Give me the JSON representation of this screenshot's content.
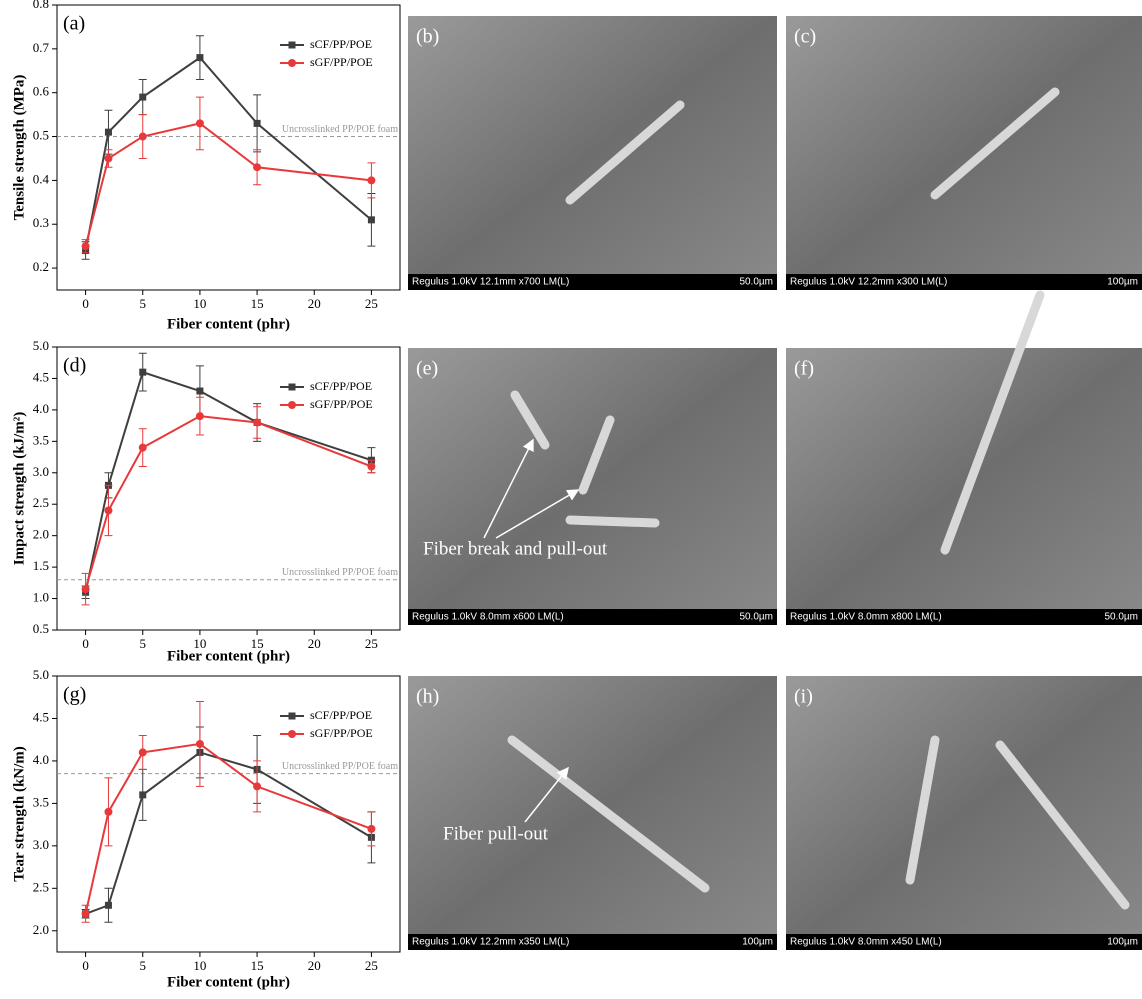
{
  "chart_data": [
    {
      "type": "line",
      "panel": "(a)",
      "xlabel": "Fiber content (phr)",
      "ylabel": "Tensile strength (MPa)",
      "x": [
        0,
        2,
        5,
        10,
        15,
        25
      ],
      "xlim": [
        -2.5,
        27.5
      ],
      "xticks": [
        0,
        5,
        10,
        15,
        20,
        25
      ],
      "ylim": [
        0.15,
        0.8
      ],
      "yticks": [
        0.2,
        0.3,
        0.4,
        0.5,
        0.6,
        0.7,
        0.8
      ],
      "reference": {
        "value": 0.5,
        "label": "Uncrosslinked PP/POE foam"
      },
      "legend": "upper right",
      "series": [
        {
          "name": "sCF/PP/POE",
          "color": "#3f3f3f",
          "marker": "square",
          "values": [
            0.24,
            0.51,
            0.59,
            0.68,
            0.53,
            0.31
          ],
          "errors": [
            0.02,
            0.05,
            0.04,
            0.05,
            0.065,
            0.06
          ]
        },
        {
          "name": "sGF/PP/POE",
          "color": "#e8393a",
          "marker": "circle",
          "values": [
            0.25,
            0.45,
            0.5,
            0.53,
            0.43,
            0.4
          ],
          "errors": [
            0.015,
            0.02,
            0.05,
            0.06,
            0.04,
            0.04
          ]
        }
      ]
    },
    {
      "type": "line",
      "panel": "(d)",
      "xlabel": "Fiber content (phr)",
      "ylabel": "Impact strength (kJ/m²)",
      "x": [
        0,
        2,
        5,
        10,
        15,
        25
      ],
      "xlim": [
        -2.5,
        27.5
      ],
      "xticks": [
        0,
        5,
        10,
        15,
        20,
        25
      ],
      "ylim": [
        0.5,
        5.0
      ],
      "yticks": [
        0.5,
        {
          "value": 1,
          "label": "1.0"
        },
        1.5,
        {
          "value": 2,
          "label": "2.0"
        },
        2.5,
        {
          "value": 3,
          "label": "3.0"
        },
        3.5,
        {
          "value": 4,
          "label": "4.0"
        },
        4.5,
        {
          "value": 5,
          "label": "5.0"
        }
      ],
      "reference": {
        "value": 1.3,
        "label": "Uncrosslinked PP/POE foam"
      },
      "legend": "upper right",
      "series": [
        {
          "name": "sCF/PP/POE",
          "color": "#3f3f3f",
          "marker": "square",
          "values": [
            1.1,
            2.8,
            4.6,
            4.3,
            3.8,
            3.2
          ],
          "errors": [
            0.1,
            0.2,
            0.3,
            0.4,
            0.3,
            0.2
          ]
        },
        {
          "name": "sGF/PP/POE",
          "color": "#e8393a",
          "marker": "circle",
          "values": [
            1.15,
            2.4,
            3.4,
            3.9,
            3.8,
            3.1
          ],
          "errors": [
            0.25,
            0.4,
            0.3,
            0.3,
            0.25,
            0.1
          ]
        }
      ]
    },
    {
      "type": "line",
      "panel": "(g)",
      "xlabel": "Fiber content (phr)",
      "ylabel": "Tear strength (kN/m)",
      "x": [
        0,
        2,
        5,
        10,
        15,
        25
      ],
      "xlim": [
        -2.5,
        27.5
      ],
      "xticks": [
        0,
        5,
        10,
        15,
        20,
        25
      ],
      "ylim": [
        1.75,
        5.0
      ],
      "yticks": [
        {
          "value": 2,
          "label": "2.0"
        },
        2.5,
        {
          "value": 3,
          "label": "3.0"
        },
        3.5,
        {
          "value": 4,
          "label": "4.0"
        },
        4.5,
        {
          "value": 5,
          "label": "5.0"
        }
      ],
      "reference": {
        "value": 3.85,
        "label": "Uncrosslinked PP/POE foam"
      },
      "legend": "upper right",
      "series": [
        {
          "name": "sCF/PP/POE",
          "color": "#3f3f3f",
          "marker": "square",
          "values": [
            2.2,
            2.3,
            3.6,
            4.1,
            3.9,
            3.1
          ],
          "errors": [
            0.05,
            0.2,
            0.3,
            0.3,
            0.4,
            0.3
          ]
        },
        {
          "name": "sGF/PP/POE",
          "color": "#e8393a",
          "marker": "circle",
          "values": [
            2.2,
            3.4,
            4.1,
            4.2,
            3.7,
            3.2
          ],
          "errors": [
            0.1,
            0.4,
            0.2,
            0.5,
            0.3,
            0.2
          ]
        }
      ]
    }
  ],
  "images": [
    {
      "label": "(b)",
      "info": "Regulus 1.0kV 12.1mm x700 LM(L)",
      "scale": "50.0µm"
    },
    {
      "label": "(c)",
      "info": "Regulus 1.0kV 12.2mm x300 LM(L)",
      "scale": "100µm"
    },
    {
      "label": "(e)",
      "info": "Regulus 1.0kV 8.0mm x600 LM(L)",
      "scale": "50.0µm",
      "annotation": "Fiber break and pull-out"
    },
    {
      "label": "(f)",
      "info": "Regulus 1.0kV 8.0mm x800 LM(L)",
      "scale": "50.0µm"
    },
    {
      "label": "(h)",
      "info": "Regulus 1.0kV 12.2mm x350 LM(L)",
      "scale": "100µm",
      "annotation": "Fiber pull-out"
    },
    {
      "label": "(i)",
      "info": "Regulus 1.0kV 8.0mm x450 LM(L)",
      "scale": "100µm"
    }
  ]
}
